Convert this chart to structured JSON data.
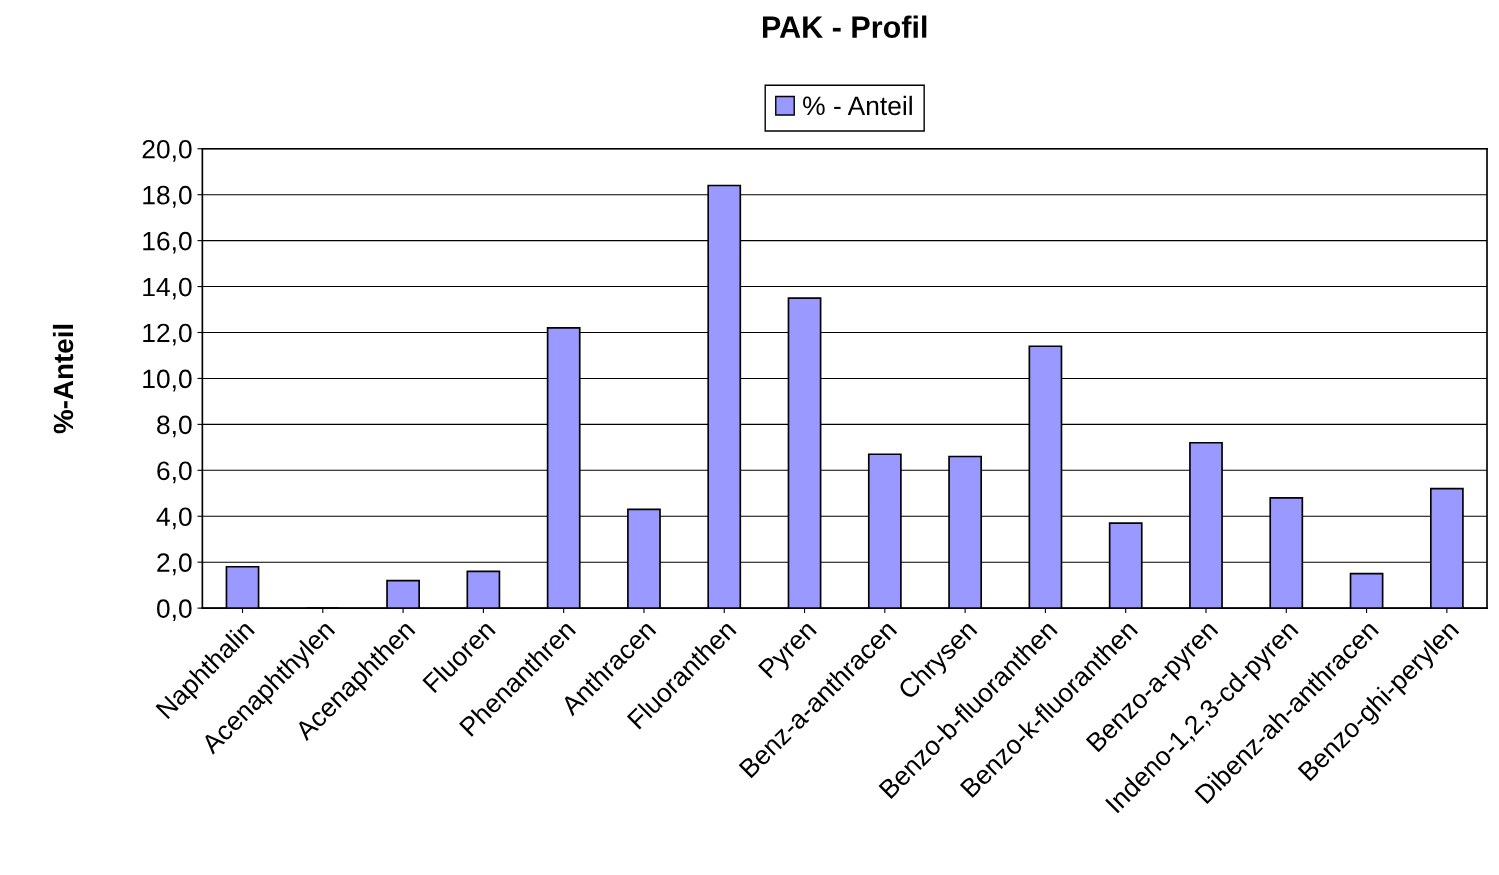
{
  "chart_data": {
    "type": "bar",
    "title": "PAK - Profil",
    "ylabel": "%-Anteil",
    "categories": [
      "Naphthalin",
      "Acenaphthylen",
      "Acenaphthen",
      "Fluoren",
      "Phenanthren",
      "Anthracen",
      "Fluoranthen",
      "Pyren",
      "Benz-a-anthracen",
      "Chrysen",
      "Benzo-b-fluoranthen",
      "Benzo-k-fluoranthen",
      "Benzo-a-pyren",
      "Indeno-1,2,3-cd-pyren",
      "Dibenz-ah-anthracen",
      "Benzo-ghi-perylen"
    ],
    "series": [
      {
        "name": "% - Anteil",
        "color": "#9999ff",
        "values": [
          1.8,
          0,
          1.2,
          1.6,
          12.2,
          4.3,
          18.4,
          13.5,
          6.7,
          6.6,
          11.4,
          3.7,
          7.2,
          4.8,
          1.5,
          5.2
        ]
      }
    ],
    "ylim": [
      0,
      20
    ],
    "yticks": [
      {
        "value": 0,
        "label": "0,0"
      },
      {
        "value": 2,
        "label": "2,0"
      },
      {
        "value": 4,
        "label": "4,0"
      },
      {
        "value": 6,
        "label": "6,0"
      },
      {
        "value": 8,
        "label": "8,0"
      },
      {
        "value": 10,
        "label": "10,0"
      },
      {
        "value": 12,
        "label": "12,0"
      },
      {
        "value": 14,
        "label": "14,0"
      },
      {
        "value": 16,
        "label": "16,0"
      },
      {
        "value": 18,
        "label": "18,0"
      },
      {
        "value": 20,
        "label": "20,0"
      }
    ],
    "grid": "y",
    "legend": "top"
  }
}
